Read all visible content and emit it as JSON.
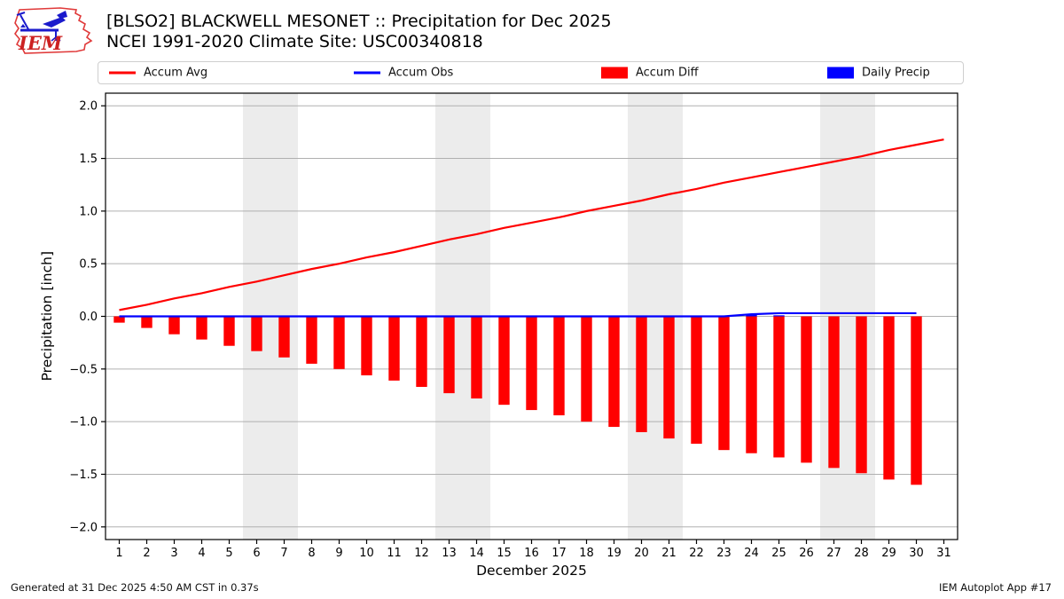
{
  "header": {
    "logo_text": "IEM"
  },
  "chart_data": {
    "type": "line+bar",
    "title": "[BLSO2] BLACKWELL MESONET :: Precipitation for Dec 2025",
    "subtitle": "NCEI 1991-2020 Climate Site: USC00340818",
    "xlabel": "December 2025",
    "ylabel": "Precipitation [inch]",
    "xlim": [
      0.5,
      31.5
    ],
    "ylim": [
      -2.12,
      2.12
    ],
    "xticks": [
      1,
      2,
      3,
      4,
      5,
      6,
      7,
      8,
      9,
      10,
      11,
      12,
      13,
      14,
      15,
      16,
      17,
      18,
      19,
      20,
      21,
      22,
      23,
      24,
      25,
      26,
      27,
      28,
      29,
      30,
      31
    ],
    "yticks": [
      -2.0,
      -1.5,
      -1.0,
      -0.5,
      0.0,
      0.5,
      1.0,
      1.5,
      2.0
    ],
    "grid": true,
    "legend_position": "top",
    "weekend_bands": [
      [
        5.5,
        7.5
      ],
      [
        12.5,
        14.5
      ],
      [
        19.5,
        21.5
      ],
      [
        26.5,
        28.5
      ]
    ],
    "colors": {
      "accum_avg": "#ff0000",
      "accum_obs": "#0000ff",
      "accum_diff": "#ff0000",
      "daily_precip": "#0000ff",
      "grid": "#b0b0b0",
      "weekend_band": "#ececec",
      "spine": "#000000"
    },
    "series": [
      {
        "name": "Accum Diff",
        "type": "bar",
        "color": "#ff0000",
        "x": [
          1,
          2,
          3,
          4,
          5,
          6,
          7,
          8,
          9,
          10,
          11,
          12,
          13,
          14,
          15,
          16,
          17,
          18,
          19,
          20,
          21,
          22,
          23,
          24,
          25,
          26,
          27,
          28,
          29,
          30
        ],
        "values": [
          -0.06,
          -0.11,
          -0.17,
          -0.22,
          -0.28,
          -0.33,
          -0.39,
          -0.45,
          -0.5,
          -0.56,
          -0.61,
          -0.67,
          -0.73,
          -0.78,
          -0.84,
          -0.89,
          -0.94,
          -1.0,
          -1.05,
          -1.1,
          -1.16,
          -1.21,
          -1.27,
          -1.3,
          -1.34,
          -1.39,
          -1.44,
          -1.49,
          -1.55,
          -1.6
        ]
      },
      {
        "name": "Daily Precip",
        "type": "bar",
        "color": "#0000ff",
        "x": [
          24,
          25
        ],
        "values": [
          0.02,
          0.01
        ]
      },
      {
        "name": "Accum Avg",
        "type": "line",
        "color": "#ff0000",
        "x": [
          1,
          2,
          3,
          4,
          5,
          6,
          7,
          8,
          9,
          10,
          11,
          12,
          13,
          14,
          15,
          16,
          17,
          18,
          19,
          20,
          21,
          22,
          23,
          24,
          25,
          26,
          27,
          28,
          29,
          30,
          31
        ],
        "values": [
          0.06,
          0.11,
          0.17,
          0.22,
          0.28,
          0.33,
          0.39,
          0.45,
          0.5,
          0.56,
          0.61,
          0.67,
          0.73,
          0.78,
          0.84,
          0.89,
          0.94,
          1.0,
          1.05,
          1.1,
          1.16,
          1.21,
          1.27,
          1.32,
          1.37,
          1.42,
          1.47,
          1.52,
          1.58,
          1.63,
          1.68
        ]
      },
      {
        "name": "Accum Obs",
        "type": "line",
        "color": "#0000ff",
        "x": [
          1,
          2,
          3,
          4,
          5,
          6,
          7,
          8,
          9,
          10,
          11,
          12,
          13,
          14,
          15,
          16,
          17,
          18,
          19,
          20,
          21,
          22,
          23,
          24,
          25,
          26,
          27,
          28,
          29,
          30
        ],
        "values": [
          0.0,
          0.0,
          0.0,
          0.0,
          0.0,
          0.0,
          0.0,
          0.0,
          0.0,
          0.0,
          0.0,
          0.0,
          0.0,
          0.0,
          0.0,
          0.0,
          0.0,
          0.0,
          0.0,
          0.0,
          0.0,
          0.0,
          0.0,
          0.02,
          0.03,
          0.03,
          0.03,
          0.03,
          0.03,
          0.03
        ]
      }
    ]
  },
  "legend": {
    "items": [
      {
        "label": "Accum Avg",
        "swatch": "line",
        "color": "#ff0000"
      },
      {
        "label": "Accum Obs",
        "swatch": "line",
        "color": "#0000ff"
      },
      {
        "label": "Accum Diff",
        "swatch": "rect",
        "color": "#ff0000"
      },
      {
        "label": "Daily Precip",
        "swatch": "rect",
        "color": "#0000ff"
      }
    ]
  },
  "footer": {
    "generated": "Generated at 31 Dec 2025 4:50 AM CST in 0.37s",
    "app": "IEM Autoplot App #17"
  }
}
